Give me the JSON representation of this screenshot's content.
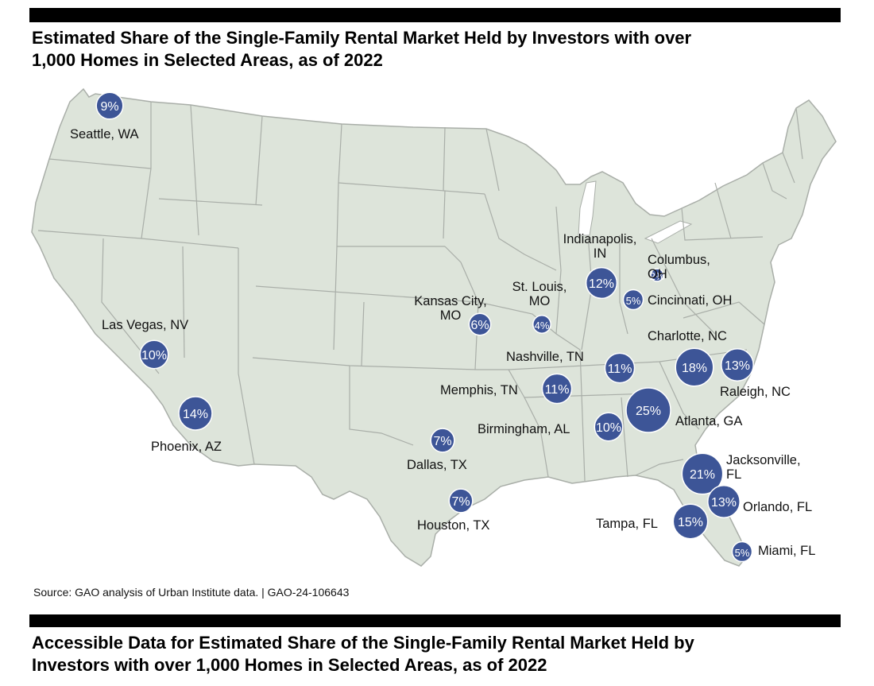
{
  "header": {
    "title_line1": "Estimated Share of the Single-Family Rental Market Held by Investors with over",
    "title_line2": "1,000 Homes in Selected Areas, as of 2022"
  },
  "source": "Source: GAO analysis of Urban Institute data.  |  GAO-24-106643",
  "footer": {
    "title_line1": "Accessible Data for Estimated Share of the Single-Family Rental Market Held by",
    "title_line2": "Investors with over 1,000 Homes in Selected Areas, as of 2022"
  },
  "colors": {
    "bubble": "#3d5597",
    "land": "#dde4da",
    "border": "#a9aea8"
  },
  "cities": [
    {
      "name": "Seattle, WA",
      "label_lines": [
        "Seattle, WA"
      ],
      "share": 9,
      "value": "9%"
    },
    {
      "name": "Las Vegas, NV",
      "label_lines": [
        "Las Vegas, NV"
      ],
      "share": 10,
      "value": "10%"
    },
    {
      "name": "Phoenix, AZ",
      "label_lines": [
        "Phoenix, AZ"
      ],
      "share": 14,
      "value": "14%"
    },
    {
      "name": "Dallas, TX",
      "label_lines": [
        "Dallas, TX"
      ],
      "share": 7,
      "value": "7%"
    },
    {
      "name": "Houston, TX",
      "label_lines": [
        "Houston, TX"
      ],
      "share": 7,
      "value": "7%"
    },
    {
      "name": "Kansas City, MO",
      "label_lines": [
        "Kansas City,",
        "MO"
      ],
      "share": 6,
      "value": "6%"
    },
    {
      "name": "St. Louis, MO",
      "label_lines": [
        "St. Louis,",
        "MO"
      ],
      "share": 4,
      "value": "4%"
    },
    {
      "name": "Memphis, TN",
      "label_lines": [
        "Memphis, TN"
      ],
      "share": 11,
      "value": "11%"
    },
    {
      "name": "Nashville, TN",
      "label_lines": [
        "Nashville, TN"
      ],
      "share": 11,
      "value": "11%"
    },
    {
      "name": "Indianapolis, IN",
      "label_lines": [
        "Indianapolis,",
        "IN"
      ],
      "share": 12,
      "value": "12%"
    },
    {
      "name": "Columbus, OH",
      "label_lines": [
        "Columbus,",
        "OH"
      ],
      "share": 2,
      "value": "2%"
    },
    {
      "name": "Cincinnati, OH",
      "label_lines": [
        "Cincinnati, OH"
      ],
      "share": 5,
      "value": "5%"
    },
    {
      "name": "Birmingham, AL",
      "label_lines": [
        "Birmingham, AL"
      ],
      "share": 10,
      "value": "10%"
    },
    {
      "name": "Atlanta, GA",
      "label_lines": [
        "Atlanta, GA"
      ],
      "share": 25,
      "value": "25%"
    },
    {
      "name": "Charlotte, NC",
      "label_lines": [
        "Charlotte, NC"
      ],
      "share": 18,
      "value": "18%"
    },
    {
      "name": "Raleigh, NC",
      "label_lines": [
        "Raleigh, NC"
      ],
      "share": 13,
      "value": "13%"
    },
    {
      "name": "Jacksonville, FL",
      "label_lines": [
        "Jacksonville,",
        "FL"
      ],
      "share": 21,
      "value": "21%"
    },
    {
      "name": "Orlando, FL",
      "label_lines": [
        "Orlando, FL"
      ],
      "share": 13,
      "value": "13%"
    },
    {
      "name": "Tampa, FL",
      "label_lines": [
        "Tampa, FL"
      ],
      "share": 15,
      "value": "15%"
    },
    {
      "name": "Miami, FL",
      "label_lines": [
        "Miami, FL"
      ],
      "share": 5,
      "value": "5%"
    }
  ]
}
